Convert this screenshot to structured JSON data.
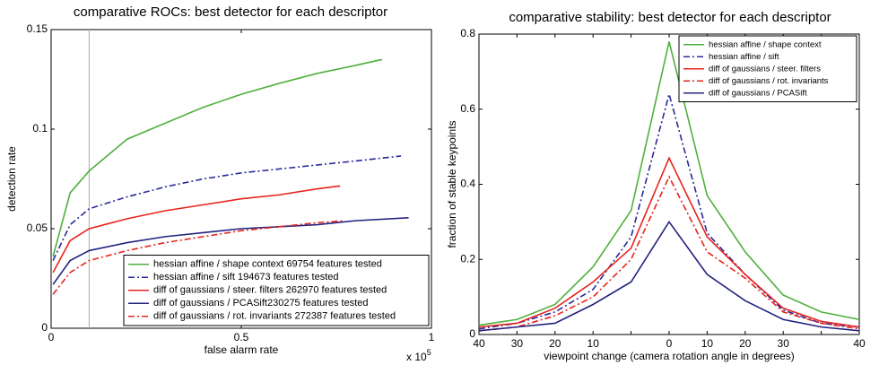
{
  "chart_data": [
    {
      "type": "line",
      "title": "comparative ROCs: best detector for each descriptor",
      "xlabel": "false alarm rate",
      "ylabel": "detection rate",
      "x_multiplier": {
        "base": "x 10",
        "exponent": "5"
      },
      "xlim": [
        0,
        1
      ],
      "xticks": [
        0,
        0.5,
        1
      ],
      "ylim": [
        0,
        0.15
      ],
      "yticks": [
        0,
        0.05,
        0.1,
        0.15
      ],
      "reference_x": 0.1,
      "legend": "lower right",
      "series": [
        {
          "name": "hessian affine / shape context 69754 features tested",
          "color": "#4fb03c",
          "dash": "solid",
          "x": [
            0.005,
            0.05,
            0.1,
            0.2,
            0.3,
            0.4,
            0.5,
            0.6,
            0.7,
            0.8,
            0.87
          ],
          "values": [
            0.036,
            0.068,
            0.079,
            0.095,
            0.103,
            0.111,
            0.1175,
            0.123,
            0.128,
            0.132,
            0.135
          ]
        },
        {
          "name": "hessian affine / sift  194673 features tested",
          "color": "#2a2a9a",
          "dash": "dashdot",
          "x": [
            0.005,
            0.05,
            0.1,
            0.2,
            0.3,
            0.4,
            0.5,
            0.6,
            0.7,
            0.8,
            0.92
          ],
          "values": [
            0.034,
            0.052,
            0.06,
            0.066,
            0.071,
            0.075,
            0.078,
            0.08,
            0.082,
            0.084,
            0.0865
          ]
        },
        {
          "name": "diff of gaussians / steer. filters 262970 features tested",
          "color": "#e8231d",
          "dash": "solid",
          "x": [
            0.005,
            0.05,
            0.1,
            0.2,
            0.3,
            0.4,
            0.5,
            0.6,
            0.7,
            0.76
          ],
          "values": [
            0.028,
            0.044,
            0.05,
            0.055,
            0.059,
            0.062,
            0.065,
            0.067,
            0.07,
            0.0715
          ]
        },
        {
          "name": "diff of gaussians / PCASift230275 features tested",
          "color": "#23237f",
          "dash": "solid",
          "x": [
            0.005,
            0.05,
            0.1,
            0.2,
            0.3,
            0.4,
            0.5,
            0.6,
            0.7,
            0.8,
            0.94
          ],
          "values": [
            0.022,
            0.034,
            0.039,
            0.043,
            0.046,
            0.048,
            0.05,
            0.051,
            0.052,
            0.054,
            0.0555
          ]
        },
        {
          "name": "diff of gaussians / rot. invariants 272387 features tested",
          "color": "#e8231d",
          "dash": "dashdot",
          "x": [
            0.005,
            0.05,
            0.1,
            0.2,
            0.3,
            0.4,
            0.5,
            0.6,
            0.7,
            0.77
          ],
          "values": [
            0.017,
            0.028,
            0.034,
            0.039,
            0.043,
            0.046,
            0.049,
            0.051,
            0.053,
            0.054
          ]
        }
      ]
    },
    {
      "type": "line",
      "title": "comparative stability: best detector for each descriptor",
      "xlabel": "viewpoint change (camera rotation angle in degrees)",
      "ylabel": "fraction of stable keypoints",
      "categories": [
        "40",
        "30",
        "20",
        "10",
        null,
        "0",
        "10",
        "20",
        "30",
        null,
        "40"
      ],
      "ylim": [
        0,
        0.8
      ],
      "yticks": [
        0,
        0.2,
        0.4,
        0.6,
        0.8
      ],
      "legend": "upper right",
      "series": [
        {
          "name": "hessian affine / shape context",
          "color": "#4fb03c",
          "dash": "solid",
          "values": [
            0.025,
            0.04,
            0.08,
            0.18,
            0.33,
            0.78,
            0.37,
            0.22,
            0.105,
            0.06,
            0.04
          ]
        },
        {
          "name": "hessian affine / sift",
          "color": "#2a2a9a",
          "dash": "dashdot",
          "values": [
            0.015,
            0.03,
            0.06,
            0.12,
            0.26,
            0.64,
            0.27,
            0.16,
            0.065,
            0.03,
            0.02
          ]
        },
        {
          "name": "diff of gaussians / steer. filters",
          "color": "#e8231d",
          "dash": "solid",
          "values": [
            0.02,
            0.03,
            0.07,
            0.14,
            0.23,
            0.47,
            0.26,
            0.16,
            0.07,
            0.035,
            0.02
          ]
        },
        {
          "name": "diff of gaussians / rot. invariants",
          "color": "#e8231d",
          "dash": "dashdot",
          "values": [
            0.01,
            0.02,
            0.05,
            0.1,
            0.2,
            0.42,
            0.22,
            0.15,
            0.06,
            0.03,
            0.015
          ]
        },
        {
          "name": "diff of gaussians / PCASift",
          "color": "#23237f",
          "dash": "solid",
          "values": [
            0.01,
            0.02,
            0.03,
            0.08,
            0.14,
            0.3,
            0.16,
            0.09,
            0.04,
            0.02,
            0.01
          ]
        }
      ]
    }
  ]
}
